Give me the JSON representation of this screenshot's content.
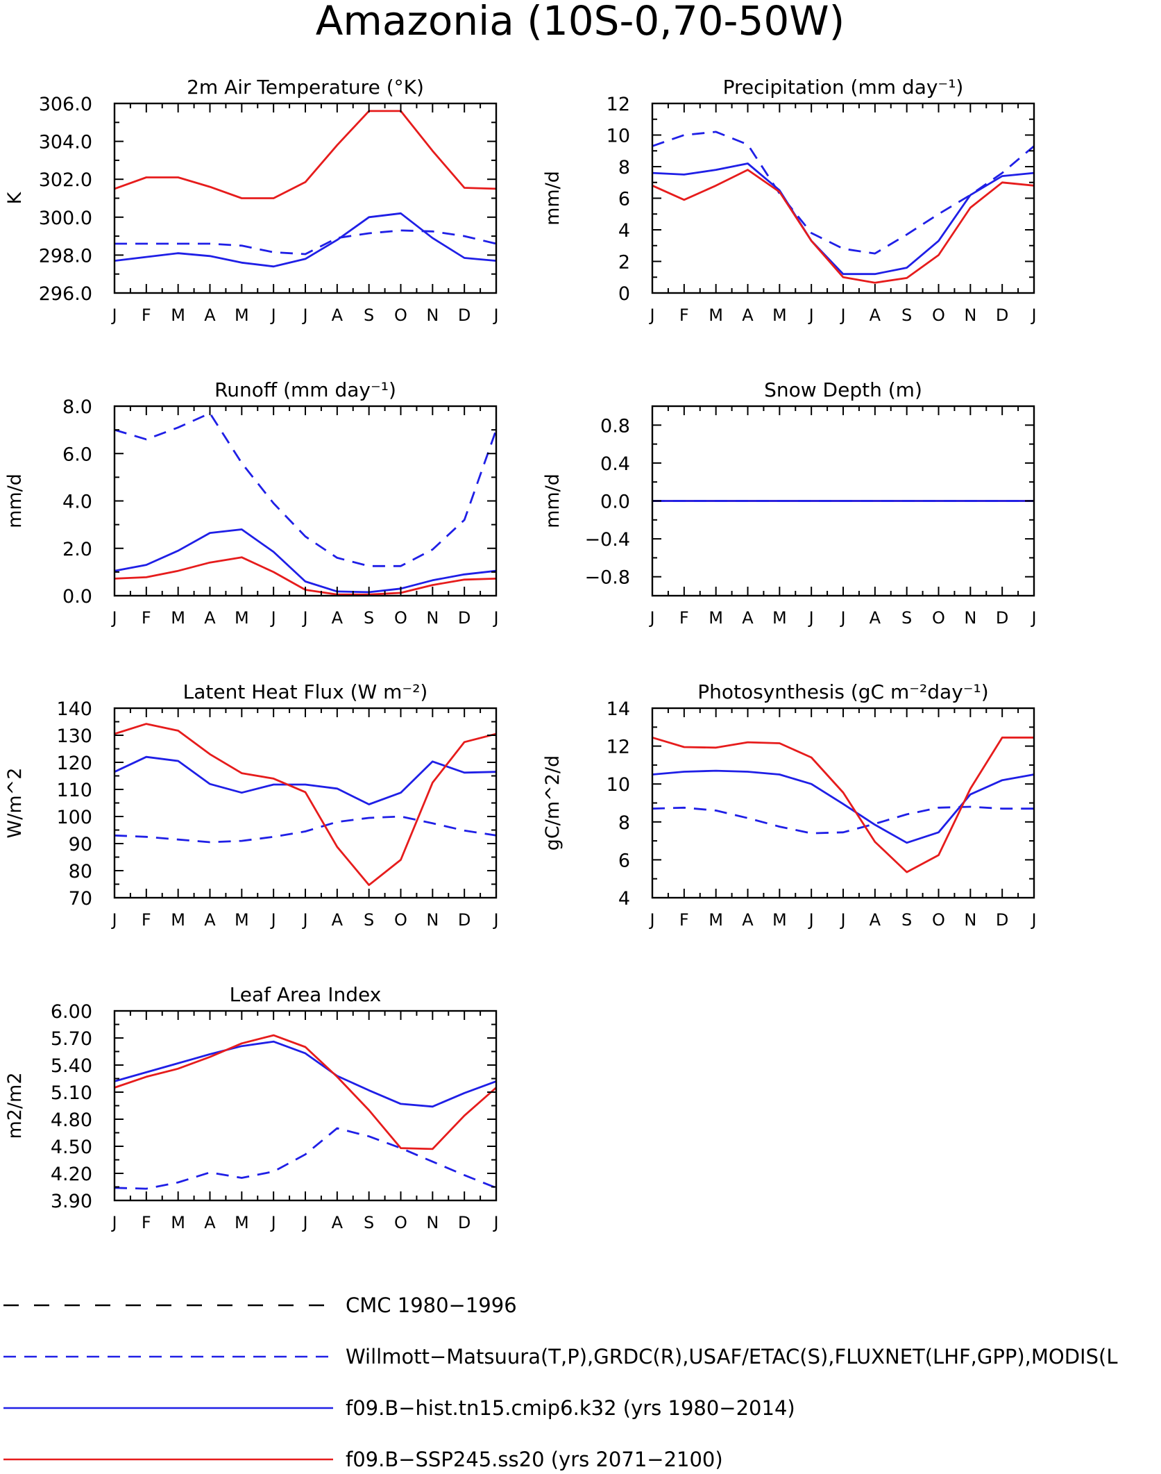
{
  "figure": {
    "title": "Amazonia (10S-0,70-50W)"
  },
  "months": [
    "J",
    "F",
    "M",
    "A",
    "M",
    "J",
    "J",
    "A",
    "S",
    "O",
    "N",
    "D",
    "J"
  ],
  "styles": {
    "obs": {
      "color": "#1f1fe6",
      "dash": "18,12"
    },
    "hist": {
      "color": "#1f1fe6"
    },
    "ssp": {
      "color": "#e61c1c"
    },
    "cmc": {
      "color": "#000000",
      "dash": "22,22"
    }
  },
  "legend": [
    {
      "style": "cmc",
      "label": "CMC 1980-1996"
    },
    {
      "style": "obs",
      "label": "Willmott-Matsuura(T,P),GRDC(R),USAF/ETAC(S),FLUXNET(LHF,GPP),MODIS(L"
    },
    {
      "style": "hist",
      "label": "f09.B-hist.tn15.cmip6.k32 (yrs 1980-2014)"
    },
    {
      "style": "ssp",
      "label": "f09.B-SSP245.ss20 (yrs 2071-2100)"
    }
  ],
  "chart_data": [
    {
      "type": "line",
      "title": "2m Air Temperature (°K)",
      "ylabel": "K",
      "ylim": [
        296,
        306
      ],
      "yticks": [
        "296.0",
        "298.0",
        "300.0",
        "302.0",
        "304.0",
        "306.0"
      ],
      "series": [
        {
          "style": "obs",
          "values": [
            298.6,
            298.6,
            298.6,
            298.6,
            298.5,
            298.15,
            298.05,
            298.9,
            299.15,
            299.3,
            299.25,
            299.0,
            298.6
          ]
        },
        {
          "style": "hist",
          "values": [
            297.7,
            297.9,
            298.1,
            297.95,
            297.6,
            297.4,
            297.8,
            298.8,
            300.0,
            300.2,
            298.9,
            297.85,
            297.7
          ]
        },
        {
          "style": "ssp",
          "values": [
            301.5,
            302.1,
            302.1,
            301.6,
            301.0,
            301.0,
            301.85,
            303.8,
            305.6,
            305.6,
            303.5,
            301.55,
            301.5
          ]
        }
      ]
    },
    {
      "type": "line",
      "title": "Precipitation (mm day⁻¹)",
      "ylabel": "mm/d",
      "ylim": [
        0,
        12
      ],
      "yticks": [
        "0",
        "2",
        "4",
        "6",
        "8",
        "10",
        "12"
      ],
      "series": [
        {
          "style": "obs",
          "values": [
            9.3,
            10.0,
            10.2,
            9.4,
            6.3,
            3.8,
            2.8,
            2.5,
            3.7,
            5.0,
            6.2,
            7.6,
            9.3
          ]
        },
        {
          "style": "hist",
          "values": [
            7.6,
            7.5,
            7.8,
            8.2,
            6.5,
            3.3,
            1.2,
            1.2,
            1.6,
            3.3,
            6.2,
            7.4,
            7.6
          ]
        },
        {
          "style": "ssp",
          "values": [
            6.8,
            5.9,
            6.8,
            7.8,
            6.4,
            3.3,
            1.0,
            0.65,
            0.95,
            2.4,
            5.4,
            7.0,
            6.8
          ]
        }
      ]
    },
    {
      "type": "line",
      "title": "Runoff (mm day⁻¹)",
      "ylabel": "mm/d",
      "ylim": [
        0,
        8
      ],
      "yticks": [
        "0.0",
        "2.0",
        "4.0",
        "6.0",
        "8.0"
      ],
      "series": [
        {
          "style": "obs",
          "values": [
            7.0,
            6.6,
            7.1,
            7.7,
            5.6,
            3.9,
            2.5,
            1.6,
            1.25,
            1.25,
            1.95,
            3.2,
            7.0
          ]
        },
        {
          "style": "hist",
          "values": [
            1.05,
            1.3,
            1.9,
            2.65,
            2.8,
            1.85,
            0.6,
            0.18,
            0.15,
            0.3,
            0.65,
            0.9,
            1.05
          ]
        },
        {
          "style": "ssp",
          "values": [
            0.72,
            0.78,
            1.05,
            1.4,
            1.62,
            1.0,
            0.25,
            0.05,
            0.05,
            0.12,
            0.45,
            0.68,
            0.72
          ]
        }
      ]
    },
    {
      "type": "line",
      "title": "Snow Depth (m)",
      "ylabel": "mm/d",
      "ylim": [
        -1,
        1
      ],
      "yticks": [
        "-0.8",
        "-0.4",
        "0.0",
        "0.4",
        "0.8"
      ],
      "ytick_values": [
        -0.8,
        -0.4,
        0.0,
        0.4,
        0.8
      ],
      "series": [
        {
          "style": "ssp",
          "values": [
            0,
            0,
            0,
            0,
            0,
            0,
            0,
            0,
            0,
            0,
            0,
            0,
            0
          ]
        },
        {
          "style": "hist",
          "values": [
            0,
            0,
            0,
            0,
            0,
            0,
            0,
            0,
            0,
            0,
            0,
            0,
            0
          ]
        },
        {
          "style": "obs",
          "values": [
            0,
            0,
            0,
            0,
            0,
            0,
            0,
            0,
            0,
            0,
            0,
            0,
            0
          ]
        }
      ]
    },
    {
      "type": "line",
      "title": "Latent Heat Flux (W m⁻²)",
      "ylabel": "W/m^2",
      "ylim": [
        70,
        140
      ],
      "yticks": [
        "70",
        "80",
        "90",
        "100",
        "110",
        "120",
        "130",
        "140"
      ],
      "series": [
        {
          "style": "obs",
          "values": [
            93,
            92.5,
            91.5,
            90.5,
            91,
            92.5,
            94.5,
            98,
            99.5,
            100,
            97.5,
            94.8,
            93
          ]
        },
        {
          "style": "hist",
          "values": [
            116.5,
            122,
            120.5,
            112,
            108.8,
            111.8,
            111.8,
            110.3,
            104.5,
            108.8,
            120.3,
            116.2,
            116.5
          ]
        },
        {
          "style": "ssp",
          "values": [
            130.5,
            134.2,
            131.7,
            123,
            116,
            114,
            109,
            88.8,
            74.7,
            84,
            112.5,
            127.5,
            130.5
          ]
        }
      ]
    },
    {
      "type": "line",
      "title": "Photosynthesis (gC m⁻²day⁻¹)",
      "ylabel": "gC/m^2/d",
      "ylim": [
        4,
        14
      ],
      "yticks": [
        "4",
        "6",
        "8",
        "10",
        "12",
        "14"
      ],
      "series": [
        {
          "style": "obs",
          "values": [
            8.7,
            8.75,
            8.6,
            8.2,
            7.75,
            7.4,
            7.45,
            7.9,
            8.4,
            8.75,
            8.8,
            8.7,
            8.7
          ]
        },
        {
          "style": "hist",
          "values": [
            10.5,
            10.65,
            10.7,
            10.65,
            10.5,
            10.0,
            8.95,
            7.85,
            6.9,
            7.45,
            9.45,
            10.2,
            10.5
          ]
        },
        {
          "style": "ssp",
          "values": [
            12.45,
            11.95,
            11.92,
            12.2,
            12.15,
            11.4,
            9.55,
            6.95,
            5.35,
            6.25,
            9.75,
            12.45,
            12.45
          ]
        }
      ]
    },
    {
      "type": "line",
      "title": "Leaf Area Index",
      "ylabel": "m2/m2",
      "ylim": [
        3.9,
        6.0
      ],
      "yticks": [
        "3.90",
        "4.20",
        "4.50",
        "4.80",
        "5.10",
        "5.40",
        "5.70",
        "6.00"
      ],
      "series": [
        {
          "style": "obs",
          "values": [
            4.04,
            4.03,
            4.1,
            4.21,
            4.15,
            4.22,
            4.41,
            4.7,
            4.61,
            4.48,
            4.33,
            4.18,
            4.04
          ]
        },
        {
          "style": "hist",
          "values": [
            5.22,
            5.32,
            5.42,
            5.52,
            5.61,
            5.66,
            5.53,
            5.28,
            5.12,
            4.97,
            4.94,
            5.09,
            5.22
          ]
        },
        {
          "style": "ssp",
          "values": [
            5.15,
            5.27,
            5.36,
            5.49,
            5.64,
            5.73,
            5.6,
            5.27,
            4.9,
            4.48,
            4.47,
            4.84,
            5.15
          ]
        }
      ]
    }
  ]
}
